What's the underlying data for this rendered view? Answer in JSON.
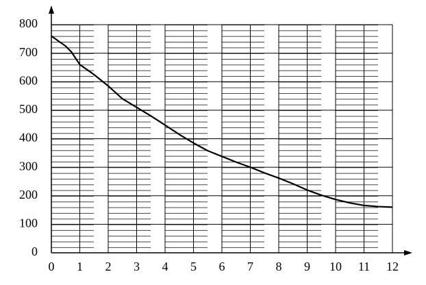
{
  "chart_data": {
    "type": "line",
    "x": [
      0,
      0.5,
      0.7,
      1,
      1.5,
      2,
      2.5,
      3,
      3.5,
      4,
      4.5,
      5,
      5.5,
      6,
      6.5,
      7,
      7.5,
      8,
      8.5,
      9,
      9.5,
      10,
      10.5,
      11,
      11.5,
      12
    ],
    "series": [
      {
        "color": "#000000",
        "values": [
          760,
          725,
          705,
          660,
          625,
          585,
          540,
          510,
          480,
          448,
          415,
          385,
          358,
          338,
          318,
          300,
          280,
          262,
          242,
          220,
          202,
          187,
          175,
          166,
          162,
          160
        ]
      }
    ],
    "xlim": [
      0,
      12
    ],
    "xticks": [
      0,
      1,
      2,
      3,
      4,
      5,
      6,
      7,
      8,
      9,
      10,
      11,
      12
    ],
    "ylim": [
      0,
      800
    ],
    "yticks": [
      0,
      100,
      200,
      300,
      400,
      500,
      600,
      700,
      800
    ],
    "grid": true
  }
}
